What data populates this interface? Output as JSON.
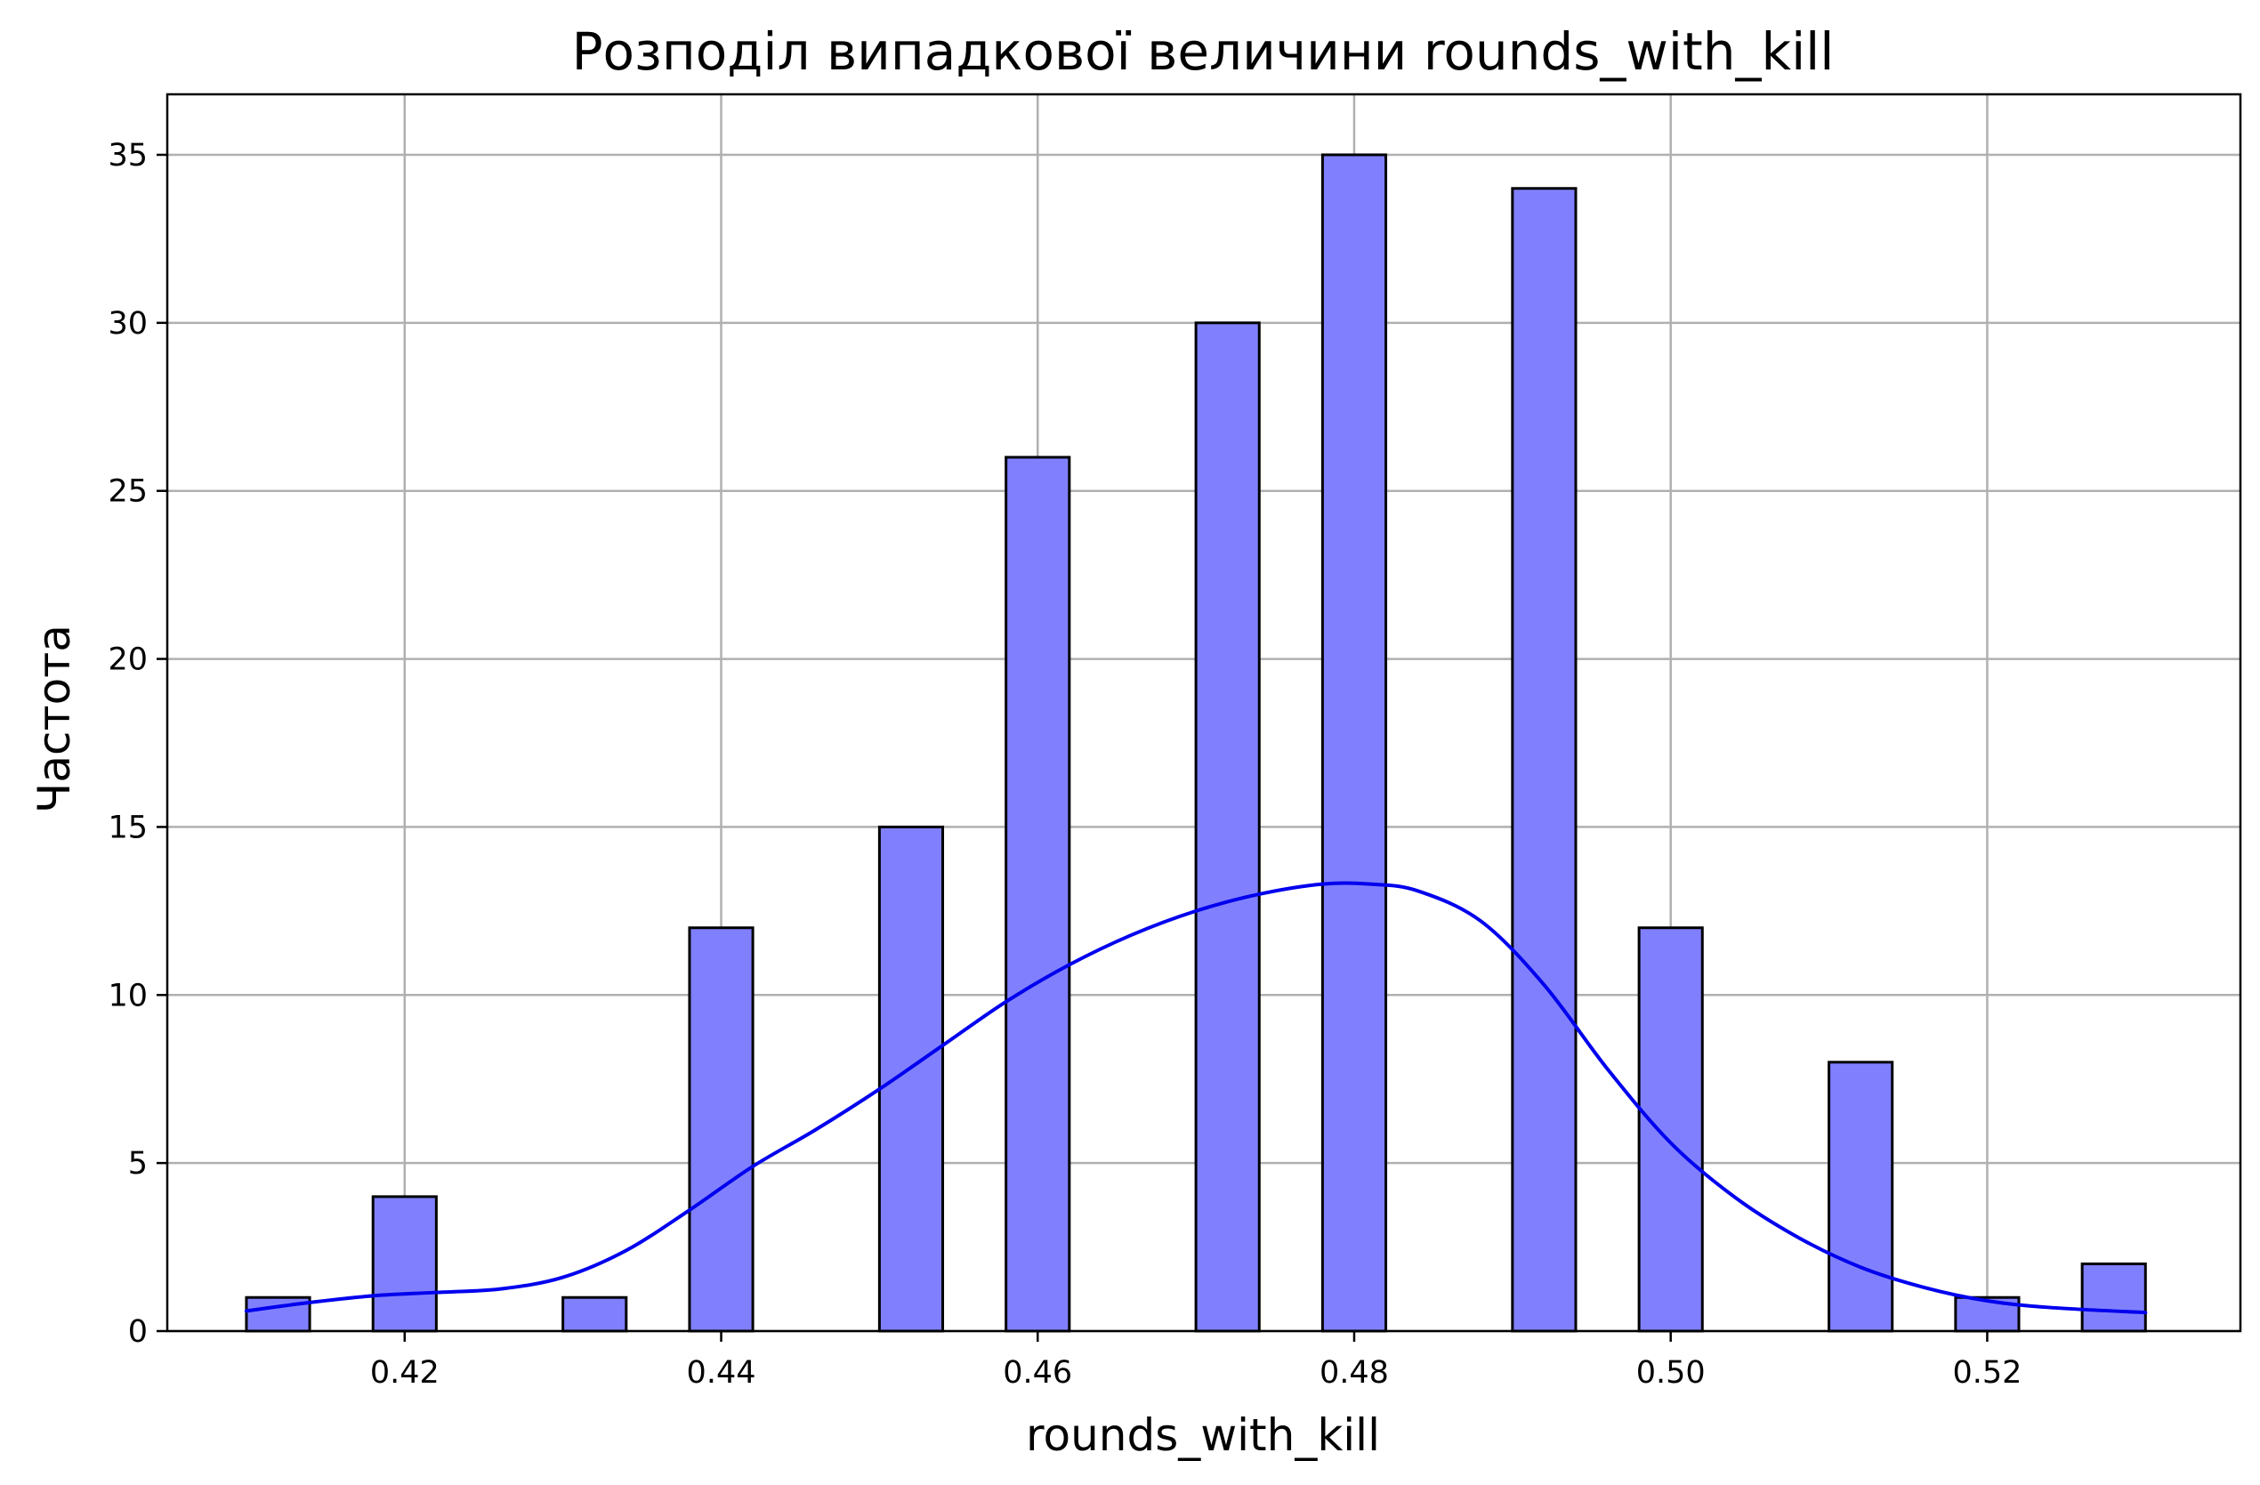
{
  "chart_data": {
    "type": "bar",
    "title": "Розподіл випадкової величини rounds_with_kill",
    "xlabel": "rounds_with_kill",
    "ylabel": "Частота",
    "xlim": [
      0.405,
      0.536
    ],
    "ylim": [
      0,
      36.8
    ],
    "xticks": [
      "0.42",
      "0.44",
      "0.46",
      "0.48",
      "0.50",
      "0.52"
    ],
    "yticks": [
      "0",
      "5",
      "10",
      "15",
      "20",
      "25",
      "30",
      "35"
    ],
    "bin_width": 0.004,
    "bins": [
      {
        "x_start": 0.41,
        "count": 1
      },
      {
        "x_start": 0.418,
        "count": 4
      },
      {
        "x_start": 0.422,
        "count": 0
      },
      {
        "x_start": 0.43,
        "count": 1
      },
      {
        "x_start": 0.438,
        "count": 12
      },
      {
        "x_start": 0.45,
        "count": 15
      },
      {
        "x_start": 0.458,
        "count": 26
      },
      {
        "x_start": 0.47,
        "count": 30
      },
      {
        "x_start": 0.478,
        "count": 35
      },
      {
        "x_start": 0.49,
        "count": 34
      },
      {
        "x_start": 0.498,
        "count": 12
      },
      {
        "x_start": 0.51,
        "count": 8
      },
      {
        "x_start": 0.518,
        "count": 1
      },
      {
        "x_start": 0.526,
        "count": 2
      }
    ],
    "kde": {
      "x": [
        0.41,
        0.414,
        0.418,
        0.422,
        0.426,
        0.43,
        0.434,
        0.438,
        0.442,
        0.446,
        0.45,
        0.454,
        0.458,
        0.462,
        0.466,
        0.47,
        0.474,
        0.478,
        0.481,
        0.484,
        0.488,
        0.492,
        0.496,
        0.5,
        0.504,
        0.508,
        0.512,
        0.516,
        0.52,
        0.524,
        0.53
      ],
      "y": [
        0.6,
        0.85,
        1.05,
        1.15,
        1.25,
        1.6,
        2.4,
        3.6,
        4.9,
        6.0,
        7.2,
        8.5,
        9.8,
        10.9,
        11.8,
        12.5,
        13.0,
        13.3,
        13.3,
        13.1,
        12.2,
        10.3,
        7.8,
        5.6,
        4.0,
        2.8,
        1.9,
        1.3,
        0.9,
        0.7,
        0.55
      ]
    },
    "colors": {
      "bar_fill": "#8080ff",
      "bar_edge": "#000000",
      "kde_line": "#0000ee"
    },
    "grid": true,
    "legend": "none"
  }
}
